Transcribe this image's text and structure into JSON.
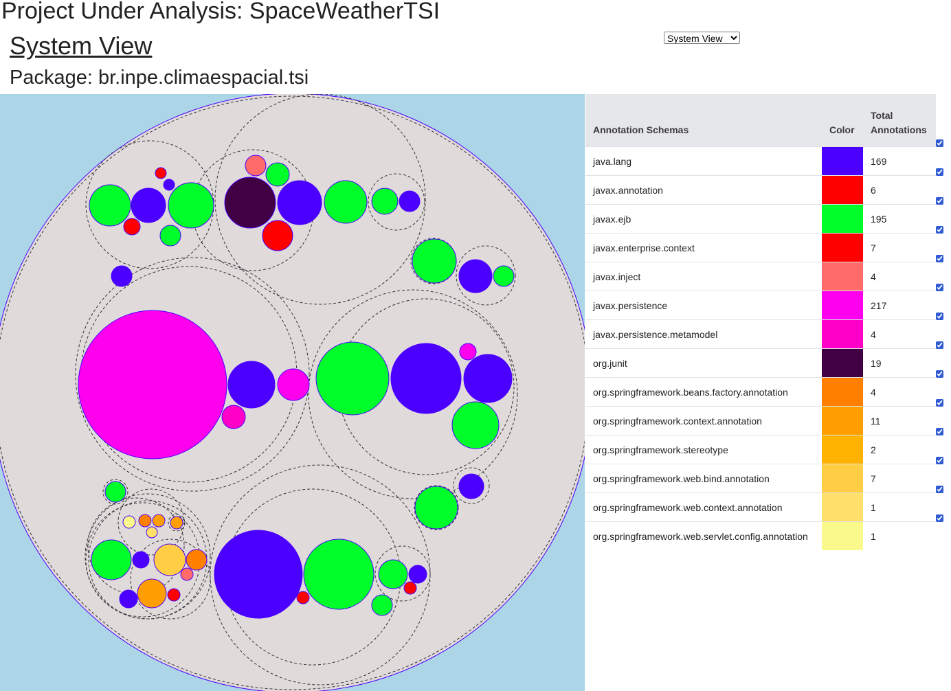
{
  "header": {
    "project_title": "Project Under Analysis: SpaceWeatherTSI",
    "view_title": "System View",
    "package_title": "Package: br.inpe.climaespacial.tsi"
  },
  "view_selector": {
    "selected": "System View",
    "options": [
      "System View"
    ]
  },
  "legend": {
    "headers": {
      "schema": "Annotation Schemas",
      "color": "Color",
      "total_line1": "Total",
      "total_line2": "Annotations"
    },
    "rows": [
      {
        "schema": "java.lang",
        "color": "#4b00ff",
        "total": "169",
        "checked": true
      },
      {
        "schema": "javax.annotation",
        "color": "#ff0000",
        "total": "6",
        "checked": true
      },
      {
        "schema": "javax.ejb",
        "color": "#00ff2a",
        "total": "195",
        "checked": true
      },
      {
        "schema": "javax.enterprise.context",
        "color": "#ff0000",
        "total": "7",
        "checked": true
      },
      {
        "schema": "javax.inject",
        "color": "#ff6b6b",
        "total": "4",
        "checked": true
      },
      {
        "schema": "javax.persistence",
        "color": "#ff00ee",
        "total": "217",
        "checked": true
      },
      {
        "schema": "javax.persistence.metamodel",
        "color": "#ff00c8",
        "total": "4",
        "checked": true
      },
      {
        "schema": "org.junit",
        "color": "#420044",
        "total": "19",
        "checked": true
      },
      {
        "schema": "org.springframework.beans.factory.annotation",
        "color": "#ff7f00",
        "total": "4",
        "checked": true
      },
      {
        "schema": "org.springframework.context.annotation",
        "color": "#ff9e00",
        "total": "11",
        "checked": true
      },
      {
        "schema": "org.springframework.stereotype",
        "color": "#ffb300",
        "total": "2",
        "checked": true
      },
      {
        "schema": "org.springframework.web.bind.annotation",
        "color": "#ffce45",
        "total": "7",
        "checked": true
      },
      {
        "schema": "org.springframework.web.context.annotation",
        "color": "#ffe06a",
        "total": "1",
        "checked": true
      },
      {
        "schema": "org.springframework.web.servlet.config.annotation",
        "color": "#fafa8c",
        "total": "1",
        "checked": true
      }
    ]
  },
  "visualization": {
    "background_color": "#acd5e8",
    "package_fill": "#e0dadb",
    "outline_color": "#4b00ff"
  }
}
